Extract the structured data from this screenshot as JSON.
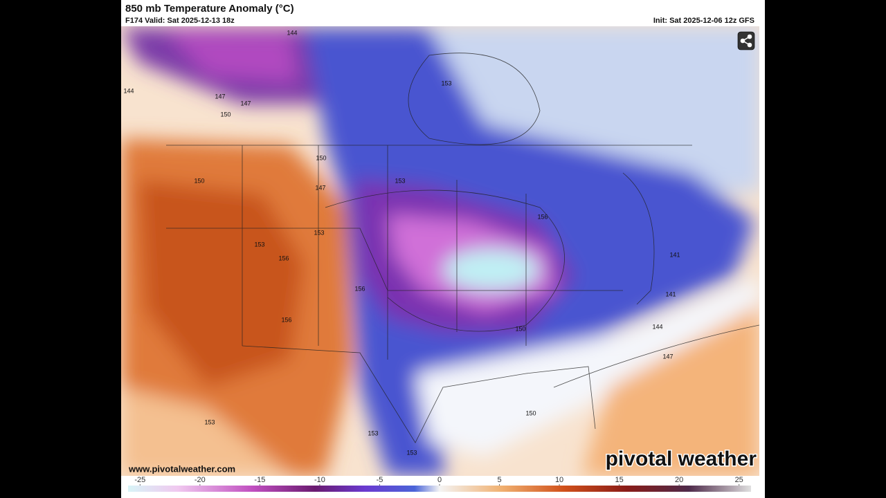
{
  "header": {
    "title": "850 mb Temperature Anomaly (°C)",
    "valid": "F174 Valid: Sat 2025-12-13 18z",
    "init": "Init: Sat 2025-12-06 12z GFS"
  },
  "contour_labels": [
    "144",
    "147",
    "150",
    "144",
    "147",
    "150",
    "147",
    "150",
    "153",
    "153",
    "153",
    "156",
    "156",
    "156",
    "153",
    "153",
    "153",
    "156",
    "141",
    "141",
    "144",
    "147",
    "150",
    "150",
    "153"
  ],
  "website": "www.pivotalweather.com",
  "logo": "pivotal weather",
  "colorbar": {
    "xlim": [
      -26,
      26
    ],
    "xticks": [
      -25,
      -20,
      -15,
      -10,
      -5,
      0,
      5,
      10,
      15,
      20,
      25
    ]
  }
}
